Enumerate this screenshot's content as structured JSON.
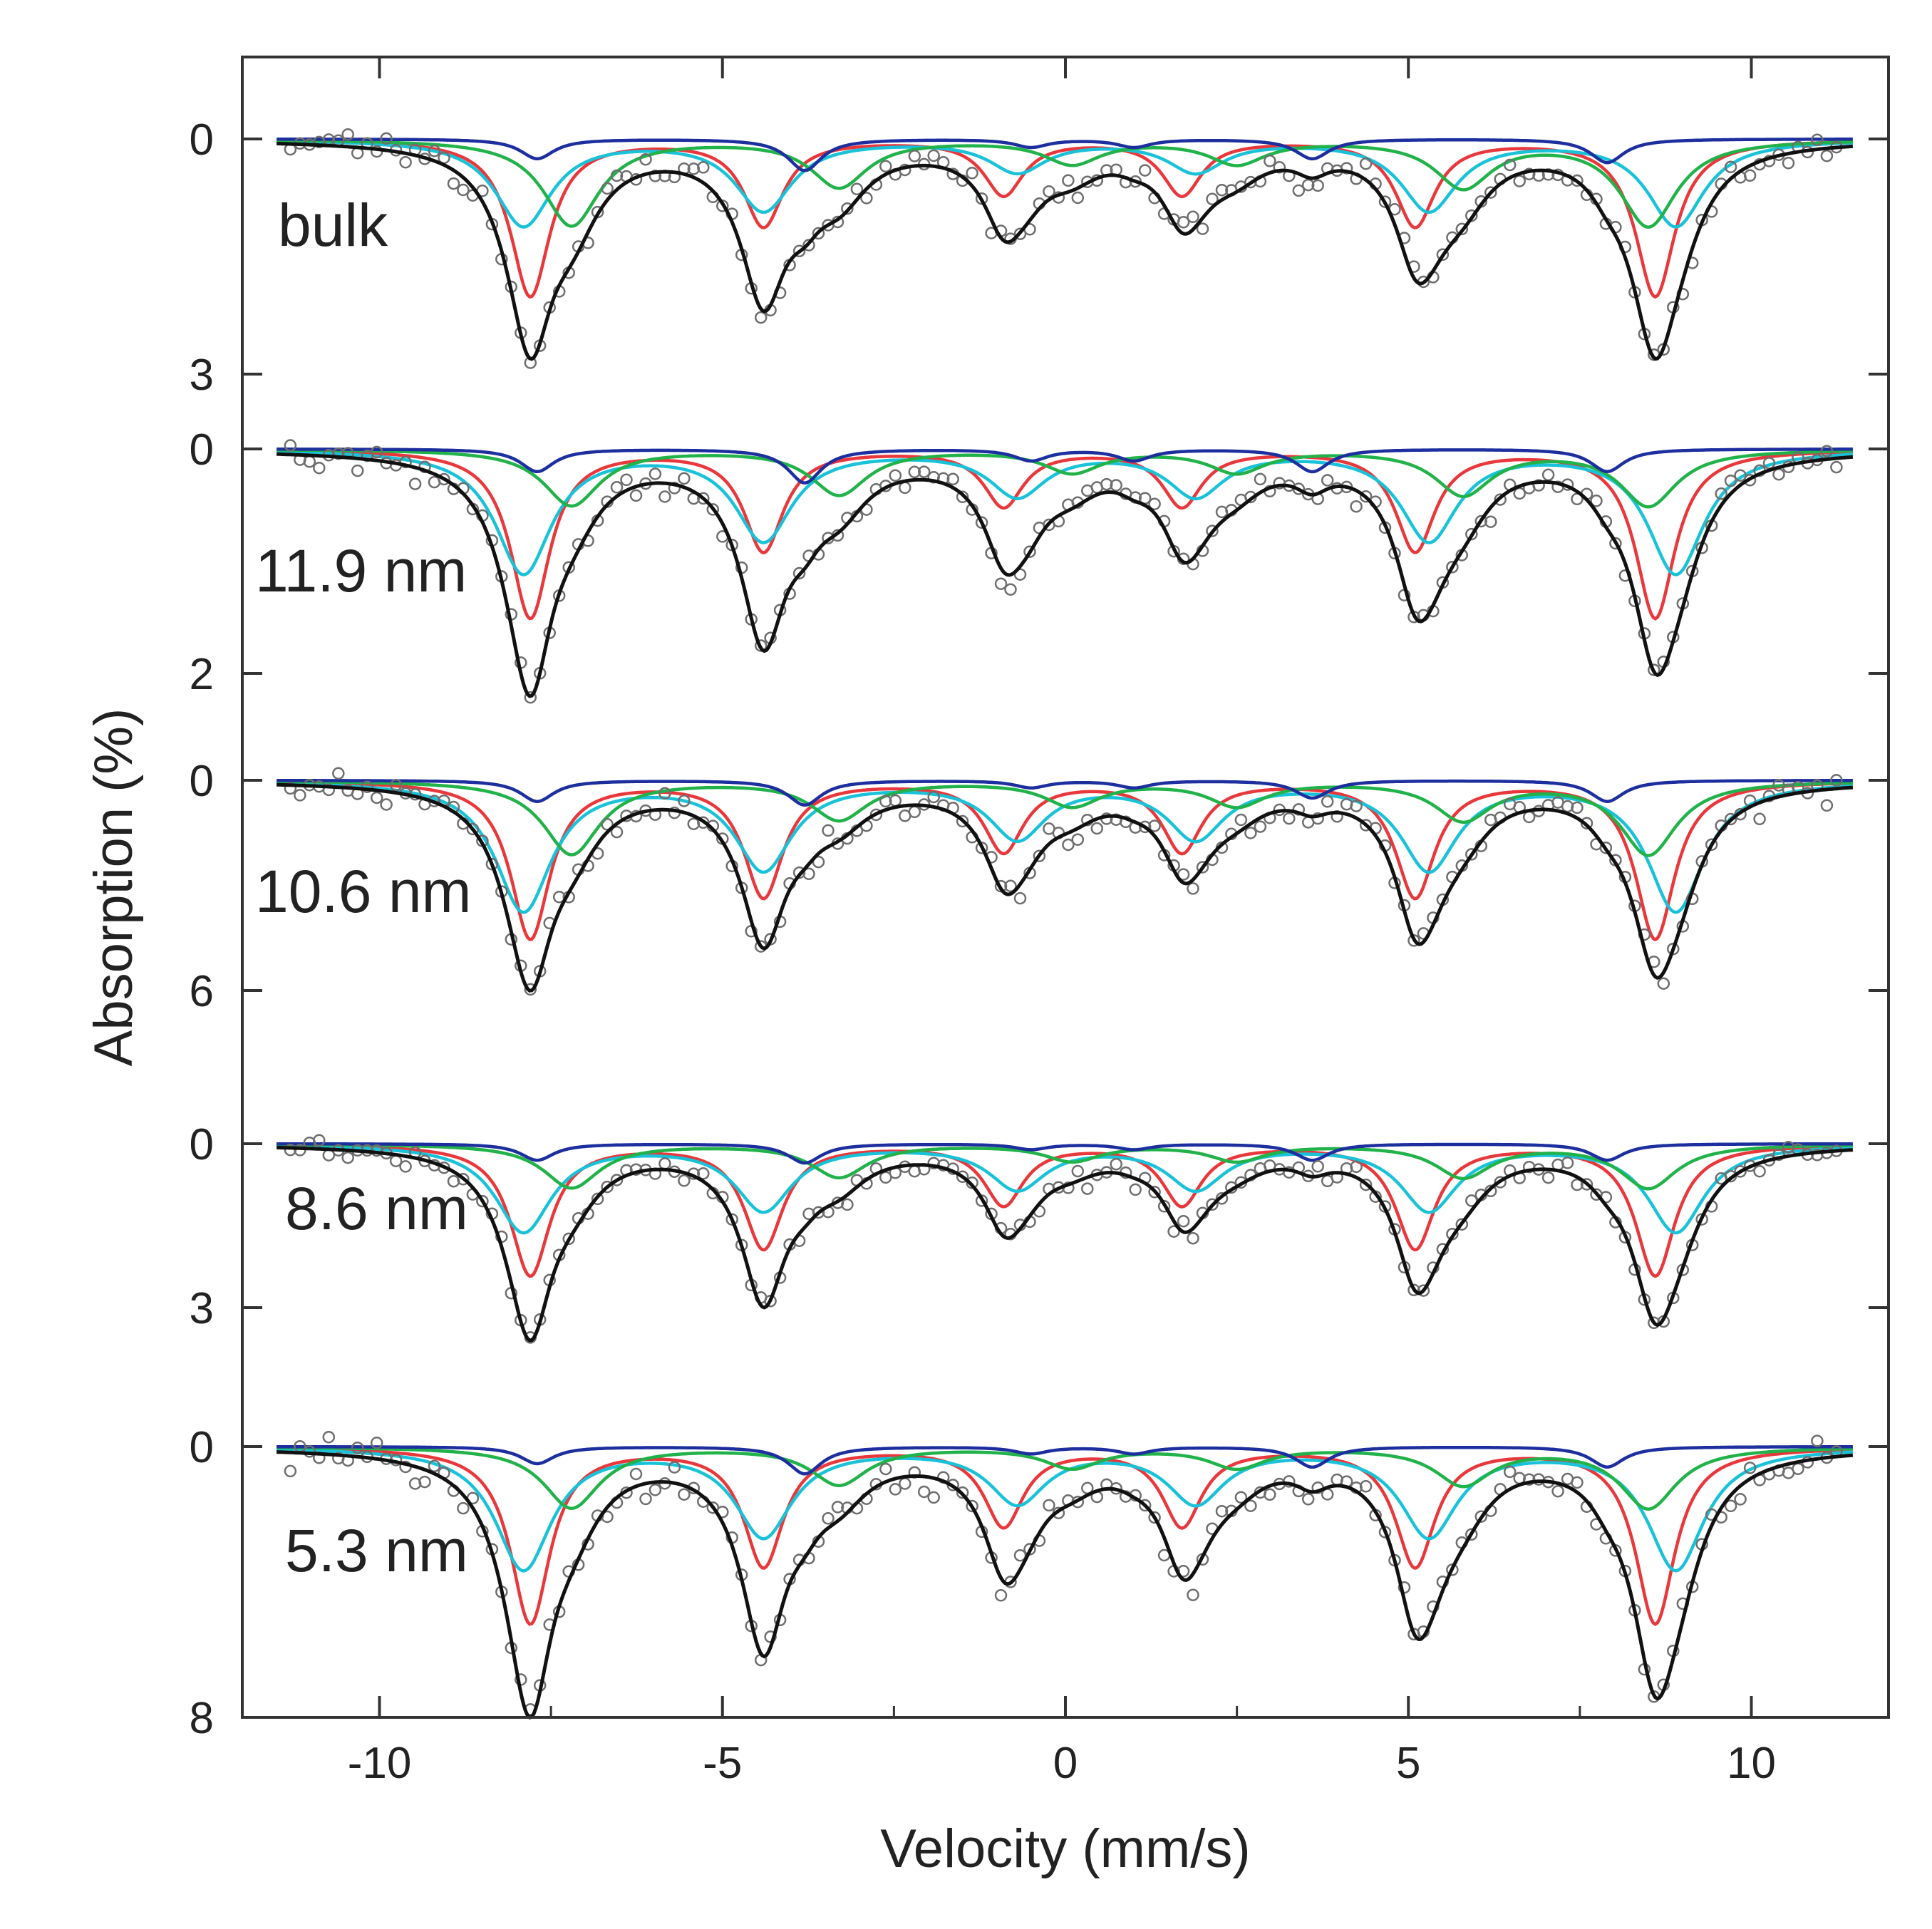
{
  "chart_data": {
    "type": "line",
    "xlabel": "Velocity (mm/s)",
    "ylabel": "Absorption  (%)",
    "xlim": [
      -12,
      12
    ],
    "x_ticks": [
      -10,
      -5,
      0,
      5,
      10
    ],
    "x_tick_labels": [
      "-10",
      "-5",
      "0",
      "5",
      "10"
    ],
    "colors": {
      "data_points": "#6e6e6e",
      "total_fit": "#111111",
      "red": "#e8383c",
      "cyan": "#19c2d8",
      "green": "#21b24a",
      "blue": "#1d2f9e"
    },
    "panels": [
      {
        "label": "bulk",
        "ylim": [
          0,
          3
        ],
        "y_tick_labels": [
          "0",
          "3"
        ],
        "total_depths": [
          2.8,
          2.2,
          1.3,
          1.2,
          1.8,
          2.8
        ],
        "component_lines": [
          {
            "name": "red",
            "positions": [
              -7.8,
              -4.4,
              -0.9,
              1.7,
              5.1,
              8.6
            ],
            "depths": [
              2.0,
              1.1,
              0.7,
              0.7,
              1.1,
              2.0
            ],
            "width": 0.35
          },
          {
            "name": "cyan",
            "positions": [
              -7.9,
              -4.4,
              -0.7,
              1.9,
              5.3,
              8.9
            ],
            "depths": [
              1.1,
              0.9,
              0.4,
              0.4,
              0.9,
              1.1
            ],
            "width": 0.5
          },
          {
            "name": "green",
            "positions": [
              -7.2,
              -3.3,
              0.1,
              2.5,
              5.8,
              8.5
            ],
            "depths": [
              1.1,
              0.6,
              0.3,
              0.3,
              0.6,
              1.1
            ],
            "width": 0.5
          },
          {
            "name": "blue",
            "positions": [
              -7.7,
              -3.8,
              -0.5,
              1.0,
              3.6,
              7.9
            ],
            "depths": [
              0.25,
              0.4,
              0.1,
              0.1,
              0.25,
              0.3
            ],
            "width": 0.3
          }
        ]
      },
      {
        "label": "11.9 nm",
        "ylim": [
          0,
          2
        ],
        "y_tick_labels": [
          "0",
          "2"
        ],
        "total_depths": [
          2.2,
          1.8,
          1.1,
          1.0,
          1.5,
          2.0
        ],
        "component_lines": [
          {
            "name": "red",
            "positions": [
              -7.8,
              -4.4,
              -0.9,
              1.7,
              5.1,
              8.6
            ],
            "depths": [
              1.5,
              0.9,
              0.5,
              0.5,
              0.9,
              1.5
            ],
            "width": 0.35
          },
          {
            "name": "cyan",
            "positions": [
              -7.9,
              -4.4,
              -0.7,
              1.9,
              5.3,
              8.9
            ],
            "depths": [
              1.1,
              0.8,
              0.4,
              0.4,
              0.8,
              1.1
            ],
            "width": 0.5
          },
          {
            "name": "green",
            "positions": [
              -7.2,
              -3.3,
              0.1,
              2.5,
              5.8,
              8.5
            ],
            "depths": [
              0.5,
              0.4,
              0.2,
              0.2,
              0.4,
              0.5
            ],
            "width": 0.5
          },
          {
            "name": "blue",
            "positions": [
              -7.7,
              -3.8,
              -0.5,
              1.0,
              3.6,
              7.9
            ],
            "depths": [
              0.2,
              0.3,
              0.1,
              0.1,
              0.2,
              0.2
            ],
            "width": 0.3
          }
        ]
      },
      {
        "label": "10.6 nm",
        "ylim": [
          0,
          6
        ],
        "y_tick_labels": [
          "0",
          "6"
        ],
        "total_depths": [
          6.0,
          4.8,
          3.2,
          2.9,
          4.6,
          5.6
        ],
        "component_lines": [
          {
            "name": "red",
            "positions": [
              -7.8,
              -4.4,
              -0.9,
              1.7,
              5.1,
              8.6
            ],
            "depths": [
              4.5,
              3.3,
              2.0,
              2.0,
              3.3,
              4.5
            ],
            "width": 0.35
          },
          {
            "name": "cyan",
            "positions": [
              -7.9,
              -4.4,
              -0.7,
              1.9,
              5.3,
              8.9
            ],
            "depths": [
              3.7,
              2.5,
              1.6,
              1.6,
              2.5,
              3.7
            ],
            "width": 0.5
          },
          {
            "name": "green",
            "positions": [
              -7.2,
              -3.3,
              0.1,
              2.5,
              5.8,
              8.5
            ],
            "depths": [
              2.1,
              1.1,
              0.7,
              0.7,
              1.1,
              2.1
            ],
            "width": 0.5
          },
          {
            "name": "blue",
            "positions": [
              -7.7,
              -3.8,
              -0.5,
              1.0,
              3.6,
              7.9
            ],
            "depths": [
              0.6,
              0.7,
              0.2,
              0.2,
              0.5,
              0.6
            ],
            "width": 0.3
          }
        ]
      },
      {
        "label": "8.6 nm",
        "ylim": [
          0,
          3
        ],
        "y_tick_labels": [
          "0",
          "3"
        ],
        "total_depths": [
          3.6,
          3.0,
          1.7,
          1.6,
          2.7,
          3.3
        ],
        "component_lines": [
          {
            "name": "red",
            "positions": [
              -7.8,
              -4.4,
              -0.9,
              1.7,
              5.1,
              8.6
            ],
            "depths": [
              2.4,
              1.9,
              1.1,
              1.1,
              1.9,
              2.4
            ],
            "width": 0.35
          },
          {
            "name": "cyan",
            "positions": [
              -7.9,
              -4.4,
              -0.7,
              1.9,
              5.3,
              8.9
            ],
            "depths": [
              1.6,
              1.2,
              0.8,
              0.8,
              1.2,
              1.6
            ],
            "width": 0.5
          },
          {
            "name": "green",
            "positions": [
              -7.2,
              -3.3,
              0.1,
              2.5,
              5.8,
              8.5
            ],
            "depths": [
              0.8,
              0.6,
              0.3,
              0.3,
              0.6,
              0.8
            ],
            "width": 0.5
          },
          {
            "name": "blue",
            "positions": [
              -7.7,
              -3.8,
              -0.5,
              1.0,
              3.6,
              7.9
            ],
            "depths": [
              0.3,
              0.35,
              0.1,
              0.1,
              0.3,
              0.3
            ],
            "width": 0.3
          }
        ]
      },
      {
        "label": "5.3 nm",
        "ylim": [
          0,
          8
        ],
        "y_tick_labels": [
          "0",
          "8"
        ],
        "total_depths": [
          8.0,
          6.2,
          4.0,
          3.9,
          5.6,
          7.4
        ],
        "component_lines": [
          {
            "name": "red",
            "positions": [
              -7.8,
              -4.4,
              -0.9,
              1.7,
              5.1,
              8.6
            ],
            "depths": [
              5.2,
              3.5,
              2.3,
              2.3,
              3.5,
              5.2
            ],
            "width": 0.35
          },
          {
            "name": "cyan",
            "positions": [
              -7.9,
              -4.4,
              -0.7,
              1.9,
              5.3,
              8.9
            ],
            "depths": [
              3.6,
              2.6,
              1.6,
              1.6,
              2.6,
              3.6
            ],
            "width": 0.5
          },
          {
            "name": "green",
            "positions": [
              -7.2,
              -3.3,
              0.1,
              2.5,
              5.8,
              8.5
            ],
            "depths": [
              1.8,
              1.1,
              0.6,
              0.6,
              1.1,
              1.8
            ],
            "width": 0.5
          },
          {
            "name": "blue",
            "positions": [
              -7.7,
              -3.8,
              -0.5,
              1.0,
              3.6,
              7.9
            ],
            "depths": [
              0.5,
              0.8,
              0.2,
              0.2,
              0.6,
              0.6
            ],
            "width": 0.3
          }
        ]
      }
    ]
  }
}
